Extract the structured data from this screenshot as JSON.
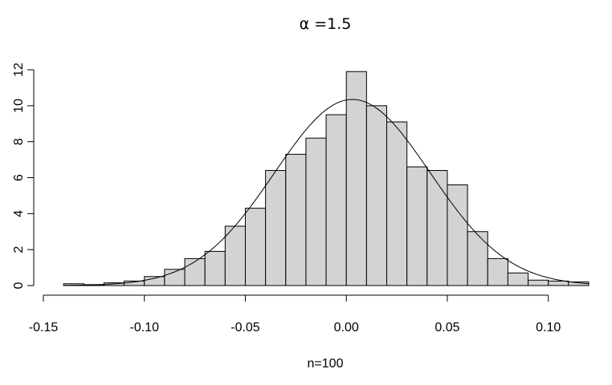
{
  "chart_data": {
    "type": "bar",
    "title": "α =1.5",
    "xlabel": "n=100",
    "ylabel": "",
    "bin_width": 0.01,
    "bin_edges": [
      -0.14,
      -0.13,
      -0.12,
      -0.11,
      -0.1,
      -0.09,
      -0.08,
      -0.07,
      -0.06,
      -0.05,
      -0.04,
      -0.03,
      -0.02,
      -0.01,
      0.0,
      0.01,
      0.02,
      0.03,
      0.04,
      0.05,
      0.06,
      0.07,
      0.08,
      0.09,
      0.1,
      0.11,
      0.12
    ],
    "values": [
      0.1,
      0.05,
      0.15,
      0.25,
      0.5,
      0.9,
      1.5,
      1.9,
      3.3,
      4.3,
      6.4,
      7.3,
      8.2,
      9.5,
      11.9,
      10.0,
      9.1,
      6.6,
      6.4,
      5.6,
      3.0,
      1.5,
      0.7,
      0.3,
      0.25,
      0.2
    ],
    "density_curve": {
      "mean": 0.003,
      "sd": 0.0385
    },
    "xlim": [
      -0.15,
      0.12
    ],
    "ylim": [
      0,
      12
    ],
    "x_ticks": [
      -0.15,
      -0.1,
      -0.05,
      0.0,
      0.05,
      0.1
    ],
    "x_tick_labels": [
      "-0.15",
      "-0.10",
      "-0.05",
      "0.00",
      "0.05",
      "0.10"
    ],
    "y_ticks": [
      0,
      2,
      4,
      6,
      8,
      10,
      12
    ],
    "y_tick_labels": [
      "0",
      "2",
      "4",
      "6",
      "8",
      "10",
      "12"
    ],
    "grid": false,
    "colors": {
      "bar_fill": "#d3d3d3",
      "bar_stroke": "#000000",
      "curve": "#000000"
    }
  }
}
